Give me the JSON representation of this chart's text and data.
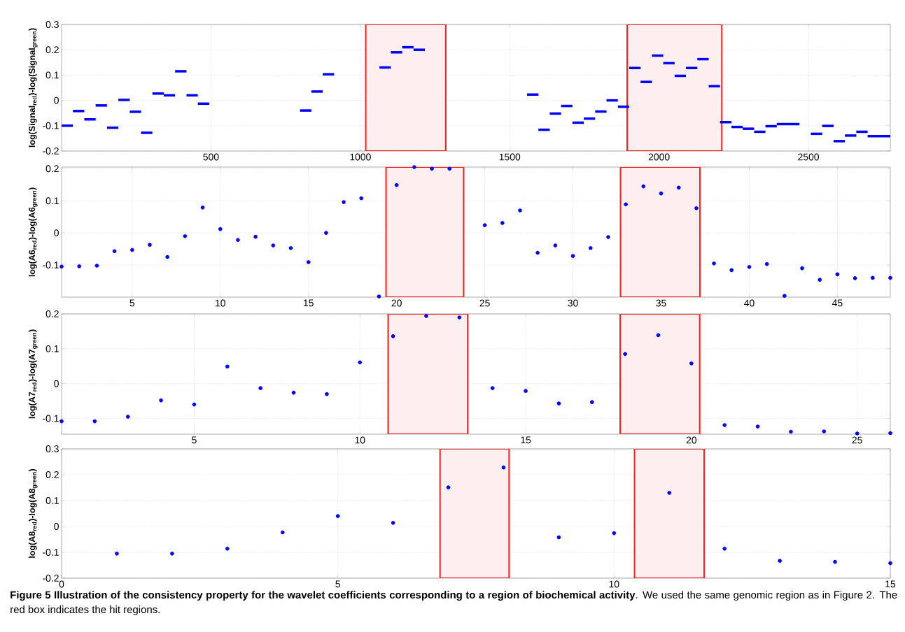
{
  "chart_data": [
    {
      "type": "line",
      "ylabel": "log(Signal$_{red}$)-log(Signal$_{green}$)",
      "xlim": [
        0,
        2774
      ],
      "ylim": [
        -0.2,
        0.3
      ],
      "xticks": [
        500,
        1000,
        1500,
        2000,
        2500
      ],
      "yticks": [
        -0.2,
        -0.1,
        0,
        0.1,
        0.2,
        0.3
      ],
      "grid": true,
      "line_style": "solid",
      "series": [
        {
          "color": "#0000ff",
          "x": [
            0,
            38
          ],
          "values": [
            -0.1,
            -0.1
          ]
        },
        {
          "color": "#0000ff",
          "x": [
            38,
            76
          ],
          "values": [
            -0.042,
            -0.042
          ]
        },
        {
          "color": "#0000ff",
          "x": [
            76,
            114
          ],
          "values": [
            -0.075,
            -0.075
          ]
        },
        {
          "color": "#0000ff",
          "x": [
            114,
            152
          ],
          "values": [
            -0.02,
            -0.02
          ]
        },
        {
          "color": "#0000ff",
          "x": [
            152,
            190
          ],
          "values": [
            -0.108,
            -0.108
          ]
        },
        {
          "color": "#0000ff",
          "x": [
            190,
            228
          ],
          "values": [
            0.002,
            0.002
          ]
        },
        {
          "color": "#0000ff",
          "x": [
            228,
            266
          ],
          "values": [
            -0.045,
            -0.045
          ]
        },
        {
          "color": "#0000ff",
          "x": [
            266,
            304
          ],
          "values": [
            -0.128,
            -0.128
          ]
        },
        {
          "color": "#0000ff",
          "x": [
            304,
            342
          ],
          "values": [
            0.027,
            0.027
          ]
        },
        {
          "color": "#0000ff",
          "x": [
            342,
            380
          ],
          "values": [
            0.02,
            0.02
          ]
        },
        {
          "color": "#0000ff",
          "x": [
            380,
            418
          ],
          "values": [
            0.115,
            0.115
          ]
        },
        {
          "color": "#0000ff",
          "x": [
            418,
            456
          ],
          "values": [
            0.02,
            0.02
          ]
        },
        {
          "color": "#0000ff",
          "x": [
            456,
            494
          ],
          "values": [
            -0.013,
            -0.013
          ]
        },
        {
          "color": "#0000ff",
          "x": [
            798,
            836
          ],
          "values": [
            -0.04,
            -0.04
          ]
        },
        {
          "color": "#0000ff",
          "x": [
            836,
            874
          ],
          "values": [
            0.035,
            0.035
          ]
        },
        {
          "color": "#0000ff",
          "x": [
            874,
            912
          ],
          "values": [
            0.103,
            0.103
          ]
        },
        {
          "color": "#0000ff",
          "x": [
            1064,
            1102
          ],
          "values": [
            0.13,
            0.13
          ]
        },
        {
          "color": "#0000ff",
          "x": [
            1102,
            1140
          ],
          "values": [
            0.19,
            0.19
          ]
        },
        {
          "color": "#0000ff",
          "x": [
            1140,
            1178
          ],
          "values": [
            0.21,
            0.21
          ]
        },
        {
          "color": "#0000ff",
          "x": [
            1178,
            1216
          ],
          "values": [
            0.2,
            0.2
          ]
        },
        {
          "color": "#0000ff",
          "x": [
            1558,
            1596
          ],
          "values": [
            0.023,
            0.023
          ]
        },
        {
          "color": "#0000ff",
          "x": [
            1596,
            1634
          ],
          "values": [
            -0.116,
            -0.116
          ]
        },
        {
          "color": "#0000ff",
          "x": [
            1634,
            1672
          ],
          "values": [
            -0.052,
            -0.052
          ]
        },
        {
          "color": "#0000ff",
          "x": [
            1672,
            1710
          ],
          "values": [
            -0.022,
            -0.022
          ]
        },
        {
          "color": "#0000ff",
          "x": [
            1710,
            1748
          ],
          "values": [
            -0.088,
            -0.088
          ]
        },
        {
          "color": "#0000ff",
          "x": [
            1748,
            1786
          ],
          "values": [
            -0.072,
            -0.072
          ]
        },
        {
          "color": "#0000ff",
          "x": [
            1786,
            1824
          ],
          "values": [
            -0.044,
            -0.044
          ]
        },
        {
          "color": "#0000ff",
          "x": [
            1824,
            1862
          ],
          "values": [
            0,
            0
          ]
        },
        {
          "color": "#0000ff",
          "x": [
            1862,
            1900
          ],
          "values": [
            -0.025,
            -0.025
          ]
        },
        {
          "color": "#0000ff",
          "x": [
            1900,
            1938
          ],
          "values": [
            0.128,
            0.128
          ]
        },
        {
          "color": "#0000ff",
          "x": [
            1938,
            1976
          ],
          "values": [
            0.073,
            0.073
          ]
        },
        {
          "color": "#0000ff",
          "x": [
            1976,
            2014
          ],
          "values": [
            0.177,
            0.177
          ]
        },
        {
          "color": "#0000ff",
          "x": [
            2014,
            2052
          ],
          "values": [
            0.147,
            0.147
          ]
        },
        {
          "color": "#0000ff",
          "x": [
            2052,
            2090
          ],
          "values": [
            0.097,
            0.097
          ]
        },
        {
          "color": "#0000ff",
          "x": [
            2090,
            2128
          ],
          "values": [
            0.128,
            0.128
          ]
        },
        {
          "color": "#0000ff",
          "x": [
            2128,
            2166
          ],
          "values": [
            0.163,
            0.163
          ]
        },
        {
          "color": "#0000ff",
          "x": [
            2166,
            2204
          ],
          "values": [
            0.056,
            0.056
          ]
        },
        {
          "color": "#0000ff",
          "x": [
            2204,
            2242
          ],
          "values": [
            -0.086,
            -0.086
          ]
        },
        {
          "color": "#0000ff",
          "x": [
            2242,
            2280
          ],
          "values": [
            -0.105,
            -0.105
          ]
        },
        {
          "color": "#0000ff",
          "x": [
            2280,
            2318
          ],
          "values": [
            -0.112,
            -0.112
          ]
        },
        {
          "color": "#0000ff",
          "x": [
            2318,
            2356
          ],
          "values": [
            -0.124,
            -0.124
          ]
        },
        {
          "color": "#0000ff",
          "x": [
            2356,
            2394
          ],
          "values": [
            -0.102,
            -0.102
          ]
        },
        {
          "color": "#0000ff",
          "x": [
            2394,
            2470
          ],
          "values": [
            -0.094,
            -0.094
          ]
        },
        {
          "color": "#0000ff",
          "x": [
            2508,
            2546
          ],
          "values": [
            -0.132,
            -0.132
          ]
        },
        {
          "color": "#0000ff",
          "x": [
            2546,
            2584
          ],
          "values": [
            -0.101,
            -0.101
          ]
        },
        {
          "color": "#0000ff",
          "x": [
            2584,
            2622
          ],
          "values": [
            -0.161,
            -0.161
          ]
        },
        {
          "color": "#0000ff",
          "x": [
            2622,
            2660
          ],
          "values": [
            -0.139,
            -0.139
          ]
        },
        {
          "color": "#0000ff",
          "x": [
            2660,
            2698
          ],
          "values": [
            -0.124,
            -0.124
          ]
        },
        {
          "color": "#0000ff",
          "x": [
            2698,
            2774
          ],
          "values": [
            -0.141,
            -0.141
          ]
        }
      ],
      "bands": [
        {
          "axis": "x",
          "from": 1018,
          "to": 1286,
          "color": "#fdefef"
        },
        {
          "axis": "x",
          "from": 1893,
          "to": 2210,
          "color": "#fdefef"
        }
      ]
    },
    {
      "type": "scatter",
      "ylabel": "log(A6$_{red}$)-log(A6$_{green}$)",
      "xlim": [
        1,
        48
      ],
      "ylim": [
        -0.2,
        0.205
      ],
      "xticks": [
        5,
        10,
        15,
        20,
        25,
        30,
        35,
        40,
        45
      ],
      "yticks": [
        -0.1,
        0,
        0.1,
        0.2
      ],
      "grid": true,
      "marker": "circle",
      "series": [
        {
          "color": "#0000ff",
          "x": [
            1,
            2,
            3,
            4,
            5,
            6,
            7,
            8,
            9,
            10,
            11,
            12,
            13,
            14,
            15,
            16,
            17,
            18,
            19,
            20,
            21,
            22,
            23,
            24,
            25,
            26,
            27,
            28,
            29,
            30,
            31,
            32,
            33,
            34,
            35,
            36,
            37,
            38,
            39,
            40,
            41,
            42,
            43,
            44,
            45,
            46,
            47,
            48
          ],
          "values": [
            -0.105,
            -0.104,
            -0.102,
            -0.057,
            -0.053,
            -0.037,
            -0.075,
            -0.01,
            0.079,
            0.012,
            -0.022,
            -0.012,
            -0.039,
            -0.047,
            -0.091,
            0,
            0.096,
            0.108,
            -0.198,
            0.149,
            0.205,
            0.2,
            0.2,
            null,
            0.024,
            0.031,
            0.07,
            -0.062,
            -0.039,
            -0.072,
            -0.047,
            -0.013,
            0.089,
            0.145,
            0.123,
            0.141,
            0.077,
            -0.095,
            -0.116,
            -0.106,
            -0.097,
            -0.196,
            -0.11,
            -0.146,
            -0.129,
            -0.141,
            -0.14,
            -0.14
          ]
        }
      ],
      "bands": [
        {
          "axis": "x",
          "from": 19.4,
          "to": 23.8,
          "color": "#fdefef"
        },
        {
          "axis": "x",
          "from": 32.7,
          "to": 37.2,
          "color": "#fdefef"
        }
      ]
    },
    {
      "type": "scatter",
      "ylabel": "log(A7$_{red}$)-log(A7$_{green}$)",
      "xlim": [
        1,
        26
      ],
      "ylim": [
        -0.145,
        0.2
      ],
      "xticks": [
        5,
        10,
        15,
        20,
        25
      ],
      "yticks": [
        -0.1,
        0,
        0.1,
        0.2
      ],
      "grid": true,
      "marker": "circle",
      "series": [
        {
          "color": "#0000ff",
          "x": [
            1,
            2,
            3,
            4,
            5,
            6,
            7,
            8,
            9,
            10,
            11,
            12,
            13,
            14,
            15,
            16,
            17,
            18,
            19,
            20,
            21,
            22,
            23,
            24,
            25,
            26
          ],
          "values": [
            -0.108,
            -0.108,
            -0.095,
            -0.048,
            -0.06,
            0.049,
            -0.013,
            -0.026,
            -0.03,
            0.061,
            0.136,
            0.194,
            0.19,
            -0.013,
            -0.021,
            -0.057,
            -0.053,
            0.085,
            0.139,
            0.058,
            -0.119,
            -0.123,
            -0.138,
            -0.137,
            -0.143,
            -0.142
          ]
        }
      ],
      "bands": [
        {
          "axis": "x",
          "from": 10.85,
          "to": 13.25,
          "color": "#fdefef"
        },
        {
          "axis": "x",
          "from": 17.85,
          "to": 20.25,
          "color": "#fdefef"
        }
      ]
    },
    {
      "type": "scatter",
      "ylabel": "log(A8$_{red}$)-log(A8$_{green}$)",
      "xlim": [
        0,
        15
      ],
      "ylim": [
        -0.2,
        0.3
      ],
      "xticks": [
        0,
        5,
        10,
        15
      ],
      "yticks": [
        -0.2,
        -0.1,
        0,
        0.1,
        0.2,
        0.3
      ],
      "grid": true,
      "marker": "circle",
      "series": [
        {
          "color": "#0000ff",
          "x": [
            1,
            2,
            3,
            4,
            5,
            6,
            7,
            8,
            9,
            10,
            11,
            12,
            13,
            14,
            15
          ],
          "values": [
            -0.105,
            -0.105,
            -0.086,
            -0.023,
            0.04,
            0.014,
            0.151,
            0.228,
            -0.042,
            -0.026,
            0.13,
            -0.086,
            -0.133,
            -0.137,
            -0.142
          ]
        }
      ],
      "bands": [
        {
          "axis": "x",
          "from": 6.85,
          "to": 8.1,
          "color": "#fdefef"
        },
        {
          "axis": "x",
          "from": 10.37,
          "to": 11.63,
          "color": "#fdefef"
        }
      ],
      "annotations": [
        "**Figure 5 Illustration of the consistency property for the wavelet coefficients corresponding to a region of biochemical activity**. We used the same genomic region as in Figure 2. The red box indicates the hit regions."
      ]
    }
  ]
}
